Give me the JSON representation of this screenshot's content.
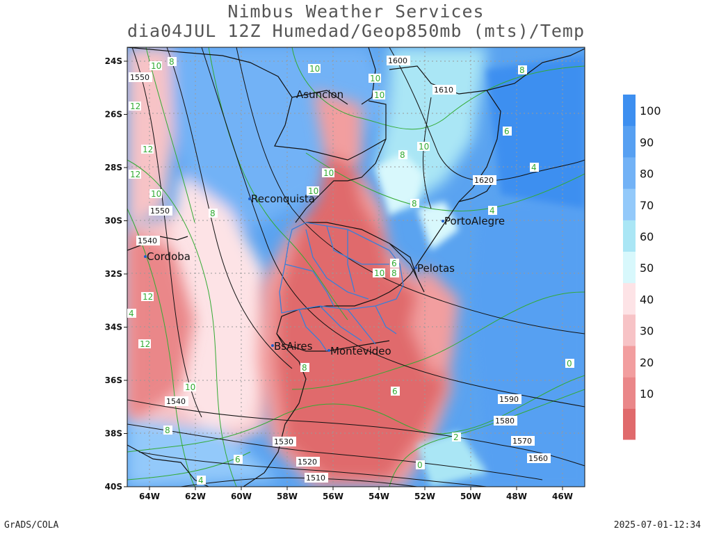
{
  "header": {
    "title_line1": "Nimbus Weather Services",
    "title_line2": "dia04JUL 12Z Humedad/Geop850mb (mts)/Temp"
  },
  "footer": {
    "software": "GrADS/COLA",
    "timestamp": "2025-07-01-12:34"
  },
  "map": {
    "lat_labels": [
      "24S",
      "26S",
      "28S",
      "30S",
      "32S",
      "34S",
      "36S",
      "38S",
      "40S"
    ],
    "lon_labels": [
      "64W",
      "62W",
      "60W",
      "58W",
      "56W",
      "54W",
      "52W",
      "50W",
      "48W",
      "46W"
    ],
    "cities": [
      {
        "name": "Asuncion"
      },
      {
        "name": "Reconquista"
      },
      {
        "name": "Cordoba"
      },
      {
        "name": "PortoAlegre"
      },
      {
        "name": "Pelotas"
      },
      {
        "name": "BsAires"
      },
      {
        "name": "Montevideo"
      }
    ],
    "geopotential_labels": [
      "1550",
      "1600",
      "1610",
      "1620",
      "1550",
      "1540",
      "1540",
      "1590",
      "1580",
      "1570",
      "1560",
      "1530",
      "1520",
      "1510"
    ],
    "temperature_labels": [
      "10",
      "8",
      "10",
      "10",
      "10",
      "12",
      "12",
      "10",
      "12",
      "10",
      "8",
      "10",
      "8",
      "10",
      "8",
      "10",
      "6",
      "8",
      "4",
      "4",
      "8",
      "12",
      "4",
      "12",
      "6",
      "8",
      "10",
      "2",
      "0",
      "6",
      "8",
      "6",
      "4",
      "0"
    ]
  },
  "colorbar": {
    "labels": [
      "100",
      "90",
      "80",
      "70",
      "60",
      "50",
      "40",
      "30",
      "20",
      "10"
    ],
    "colors": [
      "#3d8ff0",
      "#57a0f2",
      "#72b2f6",
      "#93c9fa",
      "#aae6f5",
      "#d8f8fc",
      "#fde3e6",
      "#f7c3c6",
      "#f29e9f",
      "#ea8789",
      "#e06a6c"
    ]
  },
  "colors": {
    "dry": "#e06a6c",
    "moist": "#5aa3f0",
    "temp_contour": "#33aa33",
    "geop_contour": "#111111",
    "boundary": "#3a7fd8"
  }
}
